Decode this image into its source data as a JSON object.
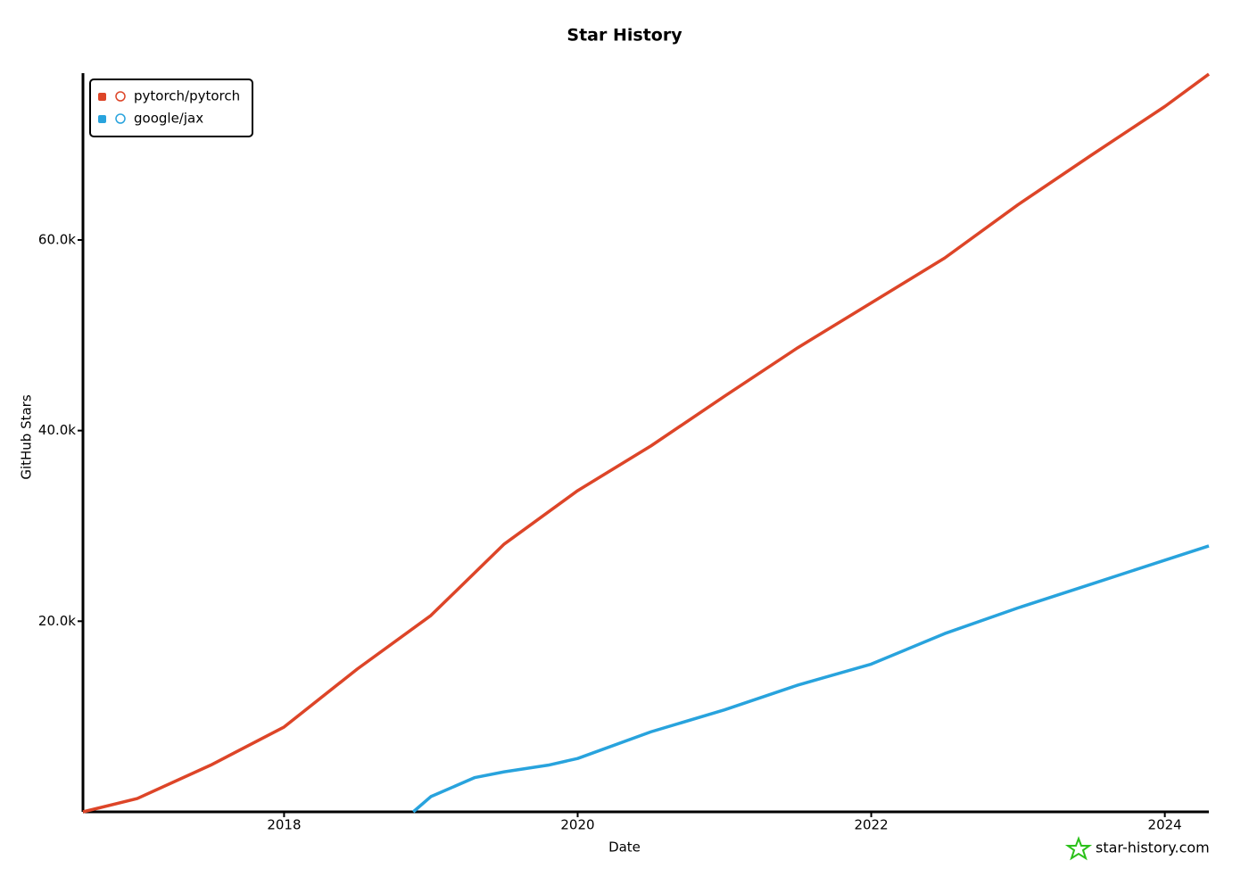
{
  "chart_data": {
    "type": "line",
    "title": "Star History",
    "x_label": "Date",
    "y_label": "GitHub Stars",
    "watermark": "star-history.com",
    "xlim": [
      2016.63,
      2024.3
    ],
    "xticks": [
      2018,
      2020,
      2022,
      2024
    ],
    "ylim": [
      0,
      77500
    ],
    "yticks": [
      {
        "value": 20000,
        "label": "20.0k"
      },
      {
        "value": 40000,
        "label": "40.0k"
      },
      {
        "value": 60000,
        "label": "60.0k"
      }
    ],
    "legend": "top-left",
    "series": [
      {
        "name": "pytorch/pytorch",
        "color": "#dd4528",
        "x": [
          2016.63,
          2017.0,
          2017.5,
          2018.0,
          2018.5,
          2019.0,
          2019.5,
          2020.0,
          2020.5,
          2021.0,
          2021.5,
          2022.0,
          2022.5,
          2023.0,
          2023.5,
          2024.0,
          2024.3
        ],
        "values": [
          0,
          1400,
          4900,
          8900,
          15000,
          20600,
          28100,
          33700,
          38400,
          43600,
          48700,
          53400,
          58100,
          63700,
          68900,
          74000,
          77400
        ]
      },
      {
        "name": "google/jax",
        "color": "#28a3dd",
        "x": [
          2018.88,
          2019.0,
          2019.3,
          2019.5,
          2019.8,
          2020.0,
          2020.5,
          2021.0,
          2021.5,
          2022.0,
          2022.5,
          2023.0,
          2023.5,
          2024.0,
          2024.3
        ],
        "values": [
          0,
          1600,
          3600,
          4200,
          4900,
          5600,
          8400,
          10700,
          13300,
          15500,
          18700,
          21400,
          23900,
          26400,
          27900
        ]
      }
    ]
  }
}
